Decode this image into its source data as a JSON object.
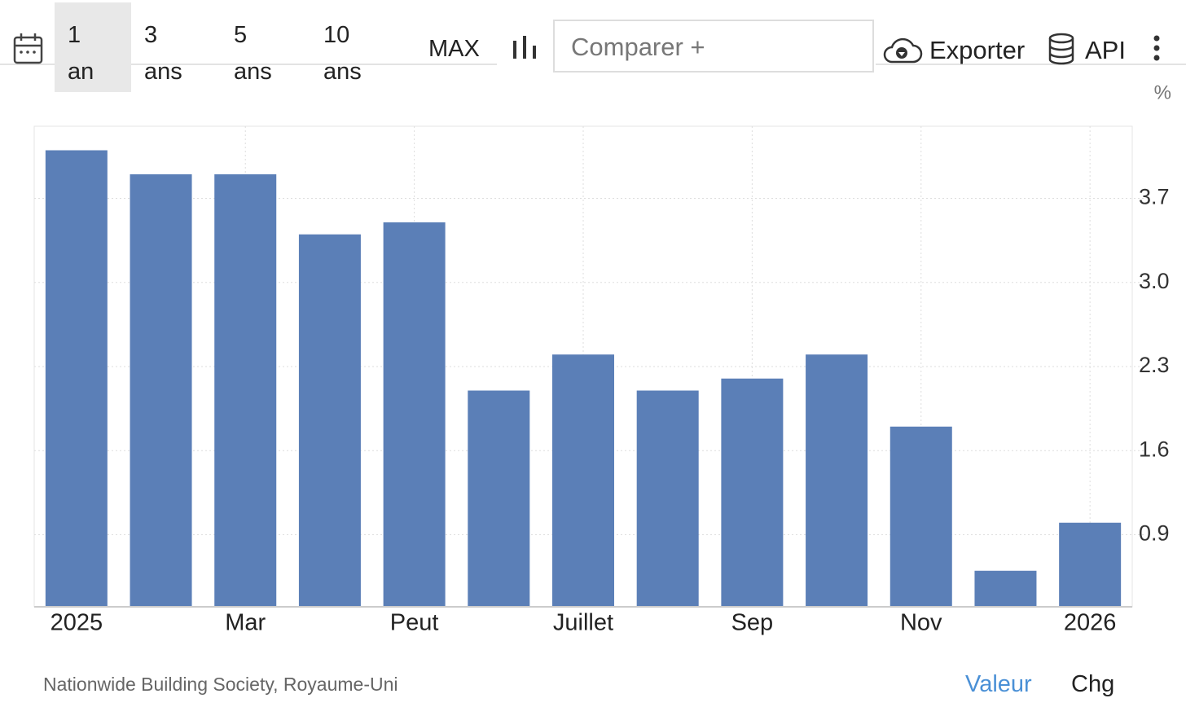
{
  "toolbar": {
    "ranges": [
      [
        "1",
        "an"
      ],
      [
        "3",
        "ans"
      ],
      [
        "5",
        "ans"
      ],
      [
        "10",
        "ans"
      ]
    ],
    "max": "MAX",
    "compare": "Comparer +",
    "export": "Exporter",
    "api": "API"
  },
  "chart_data": {
    "type": "bar",
    "y_unit": "%",
    "categories": [
      "2025",
      null,
      "Mar",
      null,
      "Peut",
      null,
      "Juillet",
      null,
      "Sep",
      null,
      "Nov",
      null,
      "2026"
    ],
    "values": [
      4.1,
      3.9,
      3.9,
      3.4,
      3.5,
      2.1,
      2.4,
      2.1,
      2.2,
      2.4,
      1.8,
      0.6,
      1.0
    ],
    "color": "#5b7fb7",
    "ylim": [
      0.3,
      4.3
    ],
    "yticks": [
      0.9,
      1.6,
      2.3,
      {
        "value": 3.0,
        "label": "3.0"
      },
      3.7
    ],
    "grid": true
  },
  "footer": {
    "source": "Nationwide Building Society, Royaume-Uni",
    "tabs": [
      "Valeur",
      "Chg"
    ]
  }
}
